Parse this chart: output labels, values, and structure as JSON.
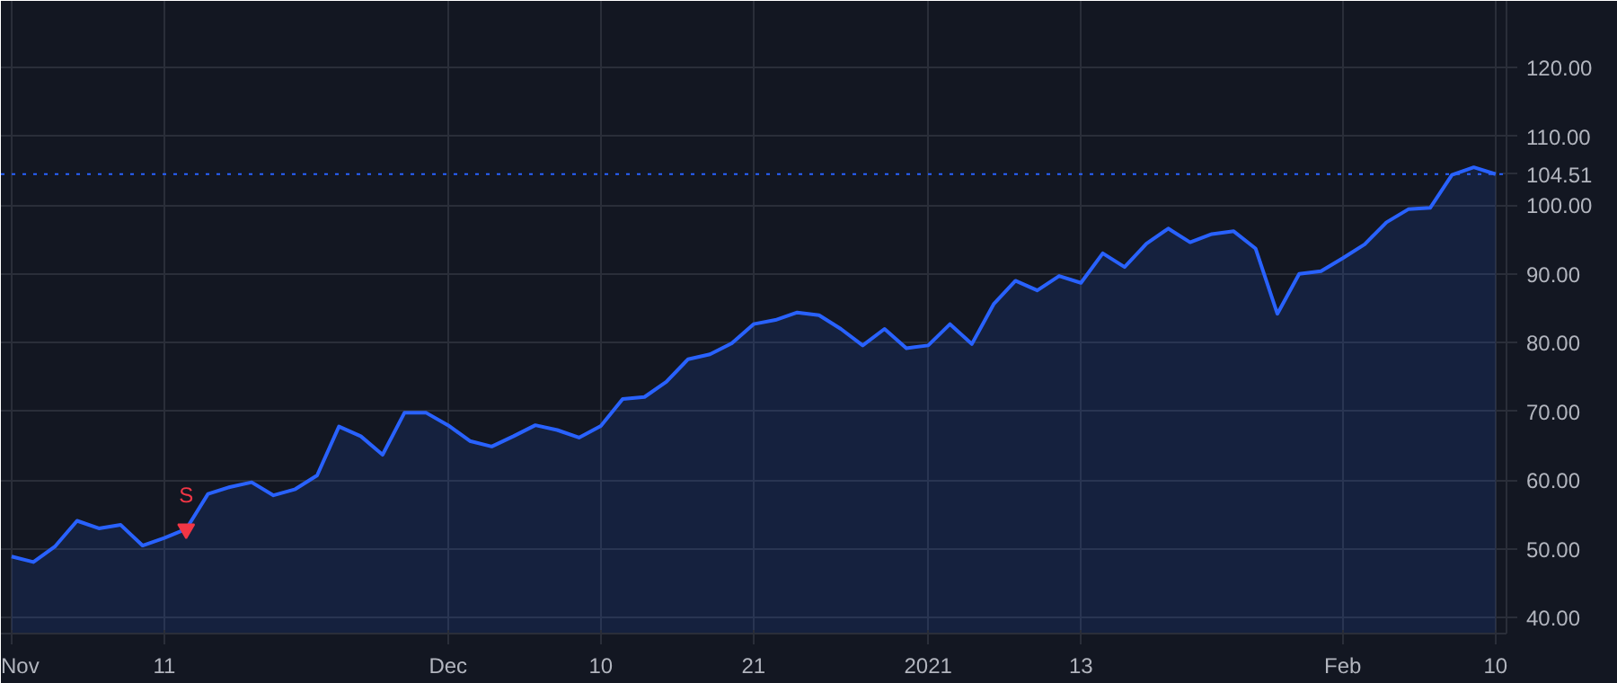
{
  "chart_data": {
    "type": "area",
    "categories": [
      "Nov",
      null,
      null,
      null,
      null,
      null,
      null,
      "11",
      null,
      null,
      null,
      null,
      null,
      null,
      null,
      null,
      null,
      null,
      null,
      null,
      "Dec",
      null,
      null,
      null,
      null,
      null,
      null,
      "10",
      null,
      null,
      null,
      null,
      null,
      null,
      "21",
      null,
      null,
      null,
      null,
      null,
      null,
      null,
      "2021",
      null,
      null,
      null,
      null,
      null,
      null,
      "13",
      null,
      null,
      null,
      null,
      null,
      null,
      null,
      null,
      null,
      null,
      null,
      "Feb",
      null,
      null,
      null,
      null,
      null,
      null,
      "10"
    ],
    "series": [
      {
        "type": "area",
        "color": "#2962ff",
        "values": [
          48.9,
          48.1,
          50.4,
          54.1,
          53.0,
          53.5,
          50.5,
          51.6,
          52.9,
          58.0,
          59.0,
          59.7,
          57.8,
          58.7,
          60.7,
          67.8,
          66.4,
          63.7,
          69.8,
          69.8,
          68.0,
          65.7,
          64.9,
          66.4,
          68.0,
          67.3,
          66.2,
          67.9,
          71.8,
          72.1,
          74.3,
          77.6,
          78.3,
          79.9,
          82.7,
          83.3,
          84.4,
          84.0,
          82.0,
          79.6,
          82.0,
          79.2,
          79.6,
          82.7,
          79.8,
          85.6,
          89.0,
          87.6,
          89.7,
          88.7,
          93.0,
          91.0,
          94.4,
          96.6,
          94.6,
          95.8,
          96.2,
          93.7,
          84.2,
          90.0,
          90.4,
          92.3,
          94.3,
          97.5,
          99.4,
          99.6,
          104.4,
          105.5,
          104.51
        ]
      },
      {
        "type": "scatter",
        "name": "S",
        "color": "#f23645",
        "marker": "triangle",
        "values": [
          null,
          null,
          null,
          null,
          null,
          null,
          null,
          null,
          52.9,
          null,
          null,
          null,
          null,
          null,
          null,
          null,
          null,
          null,
          null,
          null,
          null,
          null,
          null,
          null,
          null,
          null,
          null,
          null,
          null,
          null,
          null,
          null,
          null,
          null,
          null,
          null,
          null,
          null,
          null,
          null,
          null,
          null,
          null,
          null,
          null,
          null,
          null,
          null,
          null,
          null,
          null,
          null,
          null,
          null,
          null,
          null,
          null,
          null,
          null,
          null,
          null,
          null,
          null,
          null,
          null,
          null,
          null,
          null,
          null
        ]
      }
    ],
    "ylim": [
      37.7,
      129.7
    ],
    "yticks": [
      {
        "value": 40,
        "label": "40.00"
      },
      {
        "value": 50,
        "label": "50.00"
      },
      {
        "value": 60,
        "label": "60.00"
      },
      {
        "value": 70,
        "label": "70.00"
      },
      {
        "value": 80,
        "label": "80.00"
      },
      {
        "value": 90,
        "label": "90.00"
      },
      {
        "value": 100,
        "label": "100.00"
      },
      {
        "value": 110,
        "label": "110.00"
      },
      {
        "value": 120,
        "label": "120.00"
      }
    ],
    "ref_lines": [
      {
        "axis": "y",
        "value": 104.51,
        "label": "104.51",
        "color": "#2962ff",
        "line_style": "dotted"
      }
    ],
    "grid": true
  }
}
